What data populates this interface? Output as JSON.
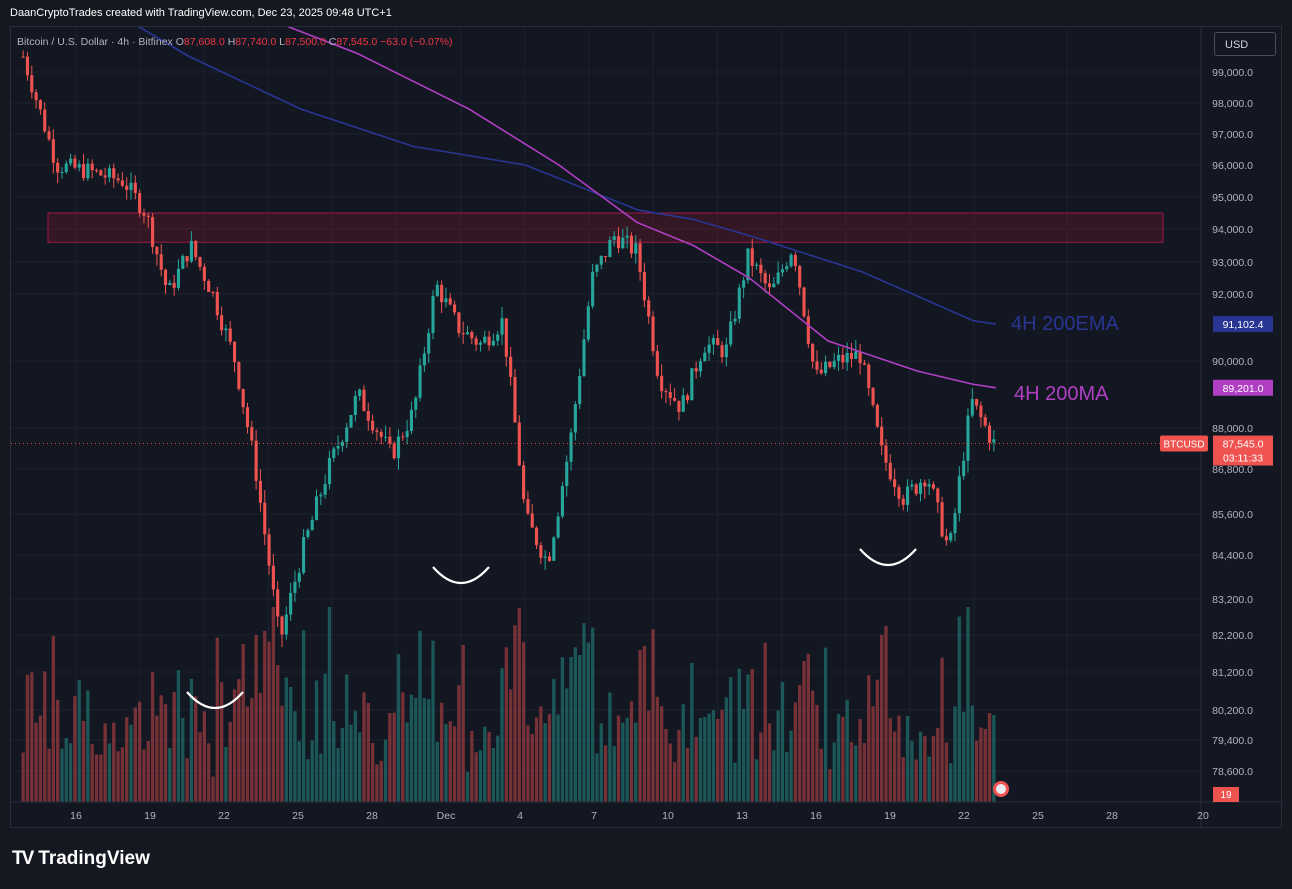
{
  "header": {
    "created_by": "DaanCryptoTrades created with TradingView.com, Dec 23, 2025 09:48 UTC+1"
  },
  "symbol": {
    "name": "Bitcoin / U.S. Dollar · 4h · Bitfinex",
    "open_label": "O",
    "open": "87,608.0",
    "high_label": "H",
    "high": "87,740.0",
    "low_label": "L",
    "low": "87,500.0",
    "close_label": "C",
    "close": "87,545.0",
    "change": "−63.0 (−0.07%)"
  },
  "currency_button": "USD",
  "footer": {
    "brand": "TradingView"
  },
  "colors": {
    "background": "#131722",
    "up": "#26a69a",
    "down": "#ef5350",
    "ema": "#283593",
    "ma": "#b03fc3",
    "zone": "#8b1a2b"
  },
  "chart_data": {
    "type": "candlestick",
    "title": "",
    "x_tick_labels": [
      "16",
      "19",
      "22",
      "25",
      "28",
      "Dec",
      "4",
      "7",
      "10",
      "13",
      "16",
      "19",
      "22",
      "25",
      "28",
      "20"
    ],
    "y_tick_labels": [
      "99,000.0",
      "98,000.0",
      "97,000.0",
      "96,000.0",
      "95,000.0",
      "94,000.0",
      "93,000.0",
      "92,000.0",
      "90,000.0",
      "88,000.0",
      "86,800.0",
      "85,600.0",
      "84,400.0",
      "83,200.0",
      "82,200.0",
      "81,200.0",
      "80,200.0",
      "79,400.0",
      "78,600.0"
    ],
    "y_tick_values": [
      99000,
      98000,
      97000,
      96000,
      95000,
      94000,
      93000,
      92000,
      90000,
      88000,
      86800,
      85600,
      84400,
      83200,
      82200,
      81200,
      80200,
      79400,
      78600
    ],
    "price_path": {
      "x": [
        0,
        3,
        6,
        9,
        11,
        13,
        15,
        17,
        19,
        21,
        23,
        25,
        27,
        30,
        33,
        35,
        37,
        39,
        41,
        43,
        45,
        47,
        49,
        51,
        53,
        55,
        57,
        59,
        61,
        63,
        65,
        67,
        69,
        71,
        73,
        75,
        77,
        79,
        81,
        83,
        85,
        87
      ],
      "close": [
        99500,
        96000,
        95800,
        95500,
        94500,
        92000,
        93500,
        92000,
        90000,
        86500,
        82000,
        84500,
        86500,
        89000,
        87200,
        88500,
        92300,
        91000,
        90500,
        91200,
        85500,
        84200,
        87500,
        92500,
        93800,
        93300,
        89500,
        88600,
        90500,
        90300,
        93200,
        92000,
        93500,
        89500,
        90000,
        90200,
        87200,
        86000,
        86700,
        84500,
        88800,
        87545
      ],
      "high": [
        100200,
        96500,
        96200,
        96000,
        95000,
        93800,
        93800,
        92800,
        90600,
        88000,
        84200,
        86000,
        87500,
        89800,
        89000,
        89800,
        93000,
        92200,
        91500,
        92000,
        87300,
        86000,
        89600,
        93600,
        94300,
        93900,
        90700,
        89200,
        91700,
        91700,
        94200,
        92900,
        93700,
        90800,
        90400,
        90400,
        88500,
        87400,
        90300,
        88700,
        90800,
        89200
      ],
      "low": [
        99000,
        95300,
        94900,
        94200,
        93300,
        90500,
        91400,
        89700,
        86100,
        81700,
        81100,
        83700,
        85900,
        86900,
        86700,
        87600,
        90400,
        90200,
        89800,
        88400,
        83900,
        83700,
        86800,
        91400,
        92800,
        88200,
        88600,
        87800,
        89200,
        89700,
        91500,
        89100,
        88900,
        89200,
        89600,
        86400,
        85900,
        85300,
        85700,
        84400,
        87100,
        86900
      ]
    },
    "volume_axis_label": "19",
    "moving_averages": [
      {
        "name": "4H 200EMA",
        "last_value": "91,102.4",
        "x": [
          8,
          15,
          25,
          35,
          45,
          55,
          60,
          65,
          75,
          85,
          87
        ],
        "values": [
          101000,
          99500,
          97800,
          96600,
          96000,
          94600,
          94300,
          93800,
          92700,
          91200,
          91102.4
        ]
      },
      {
        "name": "4H 200MA",
        "last_value": "89,201.0",
        "x": [
          12,
          20,
          30,
          40,
          48,
          55,
          60,
          65,
          72,
          80,
          85,
          87
        ],
        "values": [
          102000,
          101000,
          99600,
          97800,
          96000,
          94200,
          93500,
          92500,
          90600,
          89700,
          89300,
          89201
        ]
      }
    ],
    "resistance_zone": {
      "low": 93600,
      "high": 94500,
      "x_start": 1,
      "x_end": 99
    },
    "current_price": {
      "symbol": "BTCUSD",
      "price": "87,545.0",
      "countdown": "03:11:33"
    },
    "annotations": [
      "4H 200EMA",
      "4H 200MA"
    ]
  }
}
